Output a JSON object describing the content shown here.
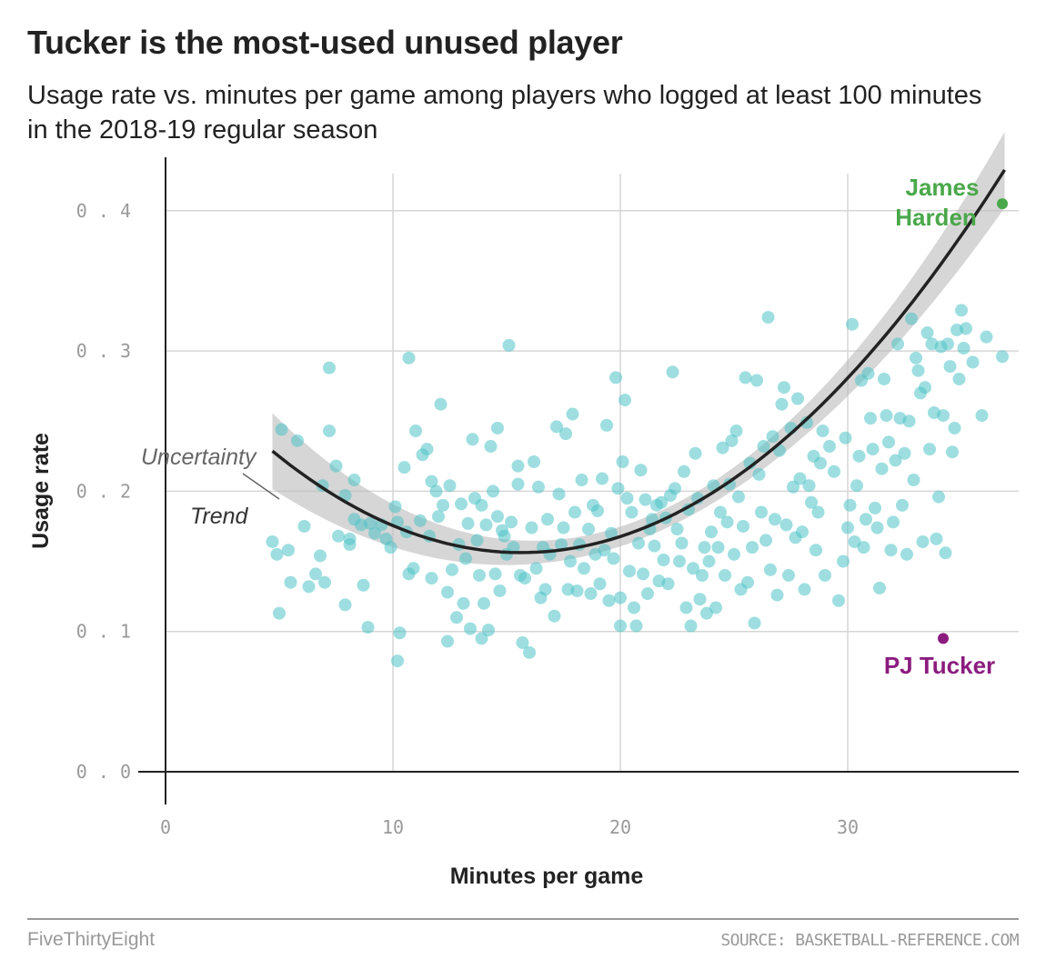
{
  "header": {
    "title": "Tucker is the most-used unused player",
    "subtitle": "Usage rate vs. minutes per game among players who logged at least 100 minutes in the 2018-19 regular season"
  },
  "footer": {
    "brand": "FiveThirtyEight",
    "source": "SOURCE: BASKETBALL-REFERENCE.COM"
  },
  "chart_data": {
    "type": "scatter",
    "xlabel": "Minutes per game",
    "ylabel": "Usage rate",
    "xlim": [
      0,
      37.5
    ],
    "ylim": [
      0,
      0.42
    ],
    "x_ticks": [
      0,
      10,
      20,
      30
    ],
    "x_tick_labels": [
      "0",
      "10",
      "20",
      "30"
    ],
    "y_ticks": [
      0,
      0.1,
      0.2,
      0.3,
      0.4
    ],
    "y_tick_labels": [
      "0.0",
      "0.1",
      "0.2",
      "0.3",
      "0.4"
    ],
    "grid": true,
    "colors": {
      "points": "#4fc3c7",
      "trend": "#222222",
      "band": "#bbbbbb",
      "harden": "#4aa84a",
      "tucker": "#8b1c7e",
      "grid": "#d6d6d6"
    },
    "series": [
      {
        "points": [
          [
            4.7,
            0.164
          ],
          [
            4.9,
            0.155
          ],
          [
            5.0,
            0.113
          ],
          [
            5.1,
            0.244
          ],
          [
            5.4,
            0.158
          ],
          [
            5.5,
            0.135
          ],
          [
            5.8,
            0.236
          ],
          [
            6.1,
            0.175
          ],
          [
            6.3,
            0.132
          ],
          [
            6.6,
            0.141
          ],
          [
            6.8,
            0.154
          ],
          [
            6.9,
            0.204
          ],
          [
            7.0,
            0.135
          ],
          [
            7.2,
            0.288
          ],
          [
            7.2,
            0.243
          ],
          [
            7.5,
            0.218
          ],
          [
            7.6,
            0.168
          ],
          [
            7.9,
            0.197
          ],
          [
            7.9,
            0.119
          ],
          [
            8.1,
            0.166
          ],
          [
            8.1,
            0.162
          ],
          [
            8.3,
            0.208
          ],
          [
            8.3,
            0.18
          ],
          [
            8.6,
            0.176
          ],
          [
            8.7,
            0.133
          ],
          [
            8.9,
            0.103
          ],
          [
            9.0,
            0.177
          ],
          [
            9.2,
            0.17
          ],
          [
            9.5,
            0.176
          ],
          [
            9.7,
            0.166
          ],
          [
            9.9,
            0.16
          ],
          [
            10.1,
            0.189
          ],
          [
            10.2,
            0.178
          ],
          [
            10.2,
            0.079
          ],
          [
            10.3,
            0.099
          ],
          [
            10.5,
            0.217
          ],
          [
            10.6,
            0.171
          ],
          [
            10.7,
            0.141
          ],
          [
            10.7,
            0.295
          ],
          [
            10.9,
            0.145
          ],
          [
            11.0,
            0.243
          ],
          [
            11.2,
            0.179
          ],
          [
            11.3,
            0.226
          ],
          [
            11.5,
            0.23
          ],
          [
            11.6,
            0.168
          ],
          [
            11.7,
            0.207
          ],
          [
            11.7,
            0.138
          ],
          [
            11.9,
            0.2
          ],
          [
            12.0,
            0.182
          ],
          [
            12.1,
            0.262
          ],
          [
            12.2,
            0.19
          ],
          [
            12.4,
            0.128
          ],
          [
            12.4,
            0.093
          ],
          [
            12.5,
            0.204
          ],
          [
            12.6,
            0.144
          ],
          [
            12.8,
            0.11
          ],
          [
            12.9,
            0.162
          ],
          [
            13.0,
            0.191
          ],
          [
            13.1,
            0.12
          ],
          [
            13.2,
            0.152
          ],
          [
            13.3,
            0.177
          ],
          [
            13.4,
            0.102
          ],
          [
            13.5,
            0.237
          ],
          [
            13.6,
            0.195
          ],
          [
            13.7,
            0.165
          ],
          [
            13.8,
            0.14
          ],
          [
            13.9,
            0.19
          ],
          [
            13.9,
            0.095
          ],
          [
            14.0,
            0.12
          ],
          [
            14.1,
            0.176
          ],
          [
            14.2,
            0.101
          ],
          [
            14.3,
            0.232
          ],
          [
            14.4,
            0.2
          ],
          [
            14.5,
            0.141
          ],
          [
            14.6,
            0.182
          ],
          [
            14.6,
            0.245
          ],
          [
            14.7,
            0.129
          ],
          [
            14.8,
            0.172
          ],
          [
            14.9,
            0.168
          ],
          [
            15.0,
            0.155
          ],
          [
            15.1,
            0.304
          ],
          [
            15.2,
            0.178
          ],
          [
            15.3,
            0.16
          ],
          [
            15.5,
            0.205
          ],
          [
            15.5,
            0.218
          ],
          [
            15.6,
            0.14
          ],
          [
            15.7,
            0.092
          ],
          [
            15.8,
            0.138
          ],
          [
            16.0,
            0.085
          ],
          [
            16.1,
            0.174
          ],
          [
            16.2,
            0.221
          ],
          [
            16.3,
            0.145
          ],
          [
            16.4,
            0.203
          ],
          [
            16.5,
            0.124
          ],
          [
            16.6,
            0.16
          ],
          [
            16.7,
            0.13
          ],
          [
            16.8,
            0.18
          ],
          [
            16.9,
            0.155
          ],
          [
            17.1,
            0.111
          ],
          [
            17.2,
            0.246
          ],
          [
            17.3,
            0.198
          ],
          [
            17.4,
            0.162
          ],
          [
            17.5,
            0.174
          ],
          [
            17.6,
            0.241
          ],
          [
            17.7,
            0.13
          ],
          [
            17.8,
            0.15
          ],
          [
            17.9,
            0.255
          ],
          [
            18.0,
            0.185
          ],
          [
            18.1,
            0.129
          ],
          [
            18.2,
            0.162
          ],
          [
            18.3,
            0.208
          ],
          [
            18.4,
            0.145
          ],
          [
            18.6,
            0.173
          ],
          [
            18.7,
            0.127
          ],
          [
            18.8,
            0.19
          ],
          [
            18.9,
            0.155
          ],
          [
            19.0,
            0.186
          ],
          [
            19.1,
            0.134
          ],
          [
            19.2,
            0.209
          ],
          [
            19.3,
            0.158
          ],
          [
            19.4,
            0.247
          ],
          [
            19.5,
            0.122
          ],
          [
            19.6,
            0.17
          ],
          [
            19.7,
            0.152
          ],
          [
            19.8,
            0.281
          ],
          [
            19.9,
            0.202
          ],
          [
            20.0,
            0.124
          ],
          [
            20.0,
            0.104
          ],
          [
            20.1,
            0.221
          ],
          [
            20.2,
            0.265
          ],
          [
            20.3,
            0.195
          ],
          [
            20.4,
            0.143
          ],
          [
            20.5,
            0.185
          ],
          [
            20.6,
            0.117
          ],
          [
            20.7,
            0.104
          ],
          [
            20.8,
            0.163
          ],
          [
            20.9,
            0.215
          ],
          [
            21.0,
            0.141
          ],
          [
            21.1,
            0.194
          ],
          [
            21.2,
            0.127
          ],
          [
            21.3,
            0.173
          ],
          [
            21.4,
            0.18
          ],
          [
            21.5,
            0.161
          ],
          [
            21.6,
            0.19
          ],
          [
            21.7,
            0.136
          ],
          [
            21.8,
            0.192
          ],
          [
            21.9,
            0.151
          ],
          [
            22.0,
            0.181
          ],
          [
            22.1,
            0.134
          ],
          [
            22.2,
            0.197
          ],
          [
            22.3,
            0.285
          ],
          [
            22.4,
            0.202
          ],
          [
            22.5,
            0.173
          ],
          [
            22.6,
            0.15
          ],
          [
            22.7,
            0.163
          ],
          [
            22.8,
            0.214
          ],
          [
            22.9,
            0.117
          ],
          [
            23.0,
            0.187
          ],
          [
            23.1,
            0.104
          ],
          [
            23.2,
            0.145
          ],
          [
            23.3,
            0.227
          ],
          [
            23.4,
            0.195
          ],
          [
            23.5,
            0.123
          ],
          [
            23.6,
            0.14
          ],
          [
            23.7,
            0.16
          ],
          [
            23.8,
            0.113
          ],
          [
            23.9,
            0.15
          ],
          [
            24.0,
            0.171
          ],
          [
            24.1,
            0.204
          ],
          [
            24.2,
            0.117
          ],
          [
            24.3,
            0.16
          ],
          [
            24.4,
            0.185
          ],
          [
            24.5,
            0.231
          ],
          [
            24.6,
            0.14
          ],
          [
            24.7,
            0.178
          ],
          [
            24.8,
            0.205
          ],
          [
            24.9,
            0.236
          ],
          [
            25.0,
            0.155
          ],
          [
            25.1,
            0.243
          ],
          [
            25.2,
            0.196
          ],
          [
            25.3,
            0.13
          ],
          [
            25.4,
            0.175
          ],
          [
            25.5,
            0.281
          ],
          [
            25.6,
            0.135
          ],
          [
            25.7,
            0.22
          ],
          [
            25.8,
            0.16
          ],
          [
            25.9,
            0.106
          ],
          [
            26.0,
            0.279
          ],
          [
            26.1,
            0.212
          ],
          [
            26.2,
            0.185
          ],
          [
            26.3,
            0.232
          ],
          [
            26.4,
            0.165
          ],
          [
            26.5,
            0.324
          ],
          [
            26.6,
            0.144
          ],
          [
            26.7,
            0.239
          ],
          [
            26.8,
            0.18
          ],
          [
            26.9,
            0.126
          ],
          [
            27.0,
            0.229
          ],
          [
            27.1,
            0.262
          ],
          [
            27.2,
            0.274
          ],
          [
            27.3,
            0.176
          ],
          [
            27.4,
            0.14
          ],
          [
            27.5,
            0.245
          ],
          [
            27.6,
            0.203
          ],
          [
            27.7,
            0.167
          ],
          [
            27.8,
            0.266
          ],
          [
            27.9,
            0.209
          ],
          [
            28.0,
            0.171
          ],
          [
            28.1,
            0.13
          ],
          [
            28.2,
            0.249
          ],
          [
            28.3,
            0.204
          ],
          [
            28.4,
            0.192
          ],
          [
            28.5,
            0.225
          ],
          [
            28.6,
            0.158
          ],
          [
            28.7,
            0.185
          ],
          [
            28.8,
            0.22
          ],
          [
            28.9,
            0.243
          ],
          [
            29.0,
            0.14
          ],
          [
            29.2,
            0.232
          ],
          [
            29.4,
            0.214
          ],
          [
            29.6,
            0.122
          ],
          [
            29.8,
            0.15
          ],
          [
            29.9,
            0.238
          ],
          [
            30.0,
            0.174
          ],
          [
            30.1,
            0.19
          ],
          [
            30.2,
            0.319
          ],
          [
            30.3,
            0.164
          ],
          [
            30.4,
            0.204
          ],
          [
            30.5,
            0.225
          ],
          [
            30.6,
            0.279
          ],
          [
            30.7,
            0.16
          ],
          [
            30.8,
            0.18
          ],
          [
            30.9,
            0.284
          ],
          [
            31.0,
            0.252
          ],
          [
            31.1,
            0.23
          ],
          [
            31.2,
            0.188
          ],
          [
            31.3,
            0.174
          ],
          [
            31.4,
            0.131
          ],
          [
            31.5,
            0.216
          ],
          [
            31.6,
            0.28
          ],
          [
            31.7,
            0.254
          ],
          [
            31.8,
            0.235
          ],
          [
            31.9,
            0.158
          ],
          [
            32.0,
            0.178
          ],
          [
            32.1,
            0.222
          ],
          [
            32.2,
            0.305
          ],
          [
            32.3,
            0.252
          ],
          [
            32.4,
            0.19
          ],
          [
            32.5,
            0.227
          ],
          [
            32.6,
            0.155
          ],
          [
            32.7,
            0.25
          ],
          [
            32.8,
            0.323
          ],
          [
            32.9,
            0.208
          ],
          [
            33.0,
            0.295
          ],
          [
            33.1,
            0.286
          ],
          [
            33.2,
            0.27
          ],
          [
            33.3,
            0.164
          ],
          [
            33.4,
            0.274
          ],
          [
            33.5,
            0.313
          ],
          [
            33.6,
            0.23
          ],
          [
            33.7,
            0.305
          ],
          [
            33.8,
            0.256
          ],
          [
            33.9,
            0.166
          ],
          [
            34.0,
            0.196
          ],
          [
            34.1,
            0.303
          ],
          [
            34.2,
            0.254
          ],
          [
            34.3,
            0.156
          ],
          [
            34.4,
            0.305
          ],
          [
            34.5,
            0.289
          ],
          [
            34.6,
            0.228
          ],
          [
            34.7,
            0.245
          ],
          [
            34.8,
            0.315
          ],
          [
            34.9,
            0.28
          ],
          [
            35.0,
            0.329
          ],
          [
            35.1,
            0.302
          ],
          [
            35.2,
            0.316
          ],
          [
            35.5,
            0.292
          ],
          [
            35.9,
            0.254
          ],
          [
            36.1,
            0.31
          ],
          [
            36.8,
            0.296
          ]
        ]
      }
    ],
    "trend": {
      "name": "Trend",
      "x_range": [
        4.7,
        36.9
      ],
      "coefficients": [
        0.3041,
        -0.0189,
        0.000604
      ]
    },
    "uncertainty": {
      "name": "Uncertainty"
    },
    "highlights": [
      {
        "name": "James Harden",
        "x": 36.8,
        "y": 0.405
      },
      {
        "name": "PJ Tucker",
        "x": 34.2,
        "y": 0.095
      }
    ],
    "annotations": {
      "harden_line1": "James",
      "harden_line2": "Harden",
      "tucker": "PJ Tucker",
      "trend": "Trend",
      "uncertainty": "Uncertainty"
    }
  }
}
